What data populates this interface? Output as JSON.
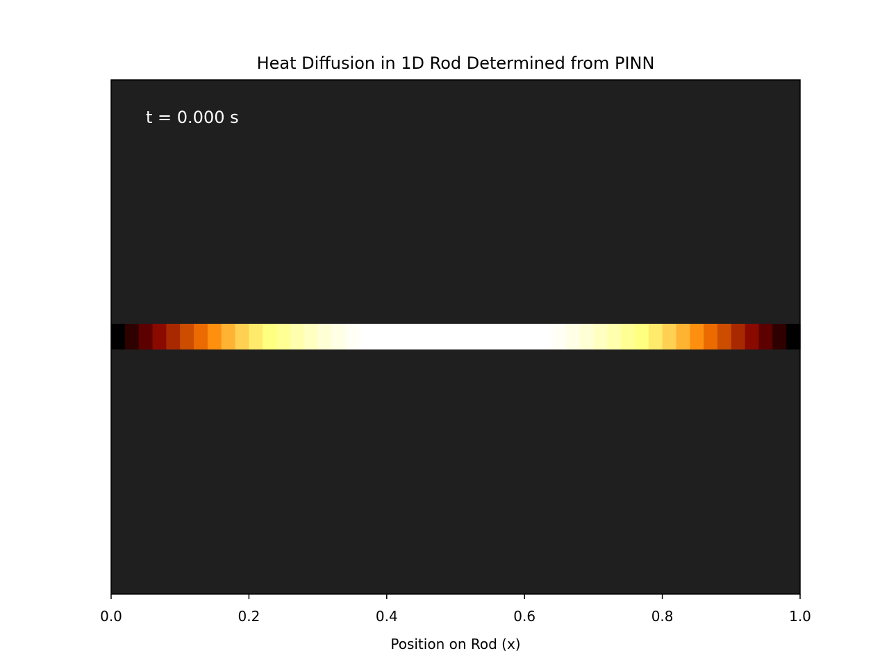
{
  "chart_data": {
    "type": "heatmap",
    "title": "Heat Diffusion in 1D Rod Determined from PINN",
    "xlabel": "Position on Rod (x)",
    "ylabel": "",
    "xlim": [
      0.0,
      1.0
    ],
    "x_ticks": [
      "0.0",
      "0.2",
      "0.4",
      "0.6",
      "0.8",
      "1.0"
    ],
    "annotation": "t = 0.000 s",
    "background_color": "#1f1f1f",
    "colormap": "afmhot",
    "grid": false,
    "legend": "none",
    "x": [
      0.01,
      0.03,
      0.05,
      0.07,
      0.09,
      0.11,
      0.13,
      0.15,
      0.17,
      0.19,
      0.21,
      0.23,
      0.25,
      0.27,
      0.29,
      0.31,
      0.33,
      0.35,
      0.37,
      0.39,
      0.41,
      0.43,
      0.45,
      0.47,
      0.49,
      0.51,
      0.53,
      0.55,
      0.57,
      0.59,
      0.61,
      0.63,
      0.65,
      0.67,
      0.69,
      0.71,
      0.73,
      0.75,
      0.77,
      0.79,
      0.81,
      0.83,
      0.85,
      0.87,
      0.89,
      0.91,
      0.93,
      0.95,
      0.97,
      0.99
    ],
    "values": [
      0.0,
      0.09,
      0.18,
      0.27,
      0.33,
      0.4,
      0.46,
      0.53,
      0.6,
      0.66,
      0.71,
      0.75,
      0.79,
      0.84,
      0.88,
      0.92,
      0.95,
      0.98,
      1.0,
      1.0,
      1.0,
      1.0,
      1.0,
      1.0,
      1.0,
      1.0,
      1.0,
      1.0,
      1.0,
      1.0,
      1.0,
      1.0,
      0.98,
      0.95,
      0.92,
      0.88,
      0.84,
      0.79,
      0.75,
      0.71,
      0.66,
      0.6,
      0.53,
      0.46,
      0.4,
      0.33,
      0.27,
      0.18,
      0.09,
      0.0
    ]
  }
}
